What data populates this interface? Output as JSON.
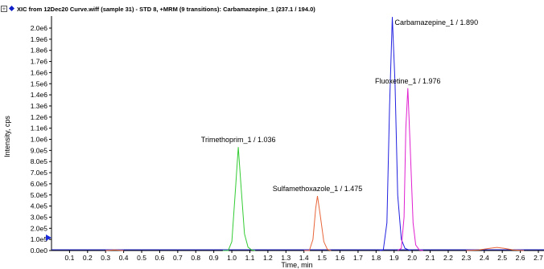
{
  "header": {
    "expand_glyph": "+",
    "title": "XIC from 12Dec20 Curve.wiff (sample 31) - STD 8, +MRM (9 transitions): Carbamazepine_1 (237.1 / 194.0)"
  },
  "colors": {
    "expand_box": "#555555",
    "title_marker": "#1020c8",
    "axis": "#000000",
    "baseline_trace": "#2a2ad0",
    "y_axis_arrow": "#1a2ad8"
  },
  "chart_data": {
    "type": "line",
    "title": "XIC from 12Dec20 Curve.wiff (sample 31) - STD 8, +MRM (9 transitions): Carbamazepine_1 (237.1 / 194.0)",
    "xlabel": "Time, min",
    "ylabel": "Intensity, cps",
    "xlim": [
      0.0,
      2.7
    ],
    "ylim": [
      0.0,
      2100000.0
    ],
    "grid": false,
    "x_ticks": [
      "0.1",
      "0.2",
      "0.3",
      "0.4",
      "0.5",
      "0.6",
      "0.7",
      "0.8",
      "0.9",
      "1.0",
      "1.1",
      "1.2",
      "1.3",
      "1.4",
      "1.5",
      "1.6",
      "1.7",
      "1.8",
      "1.9",
      "2.0",
      "2.1",
      "2.2",
      "2.3",
      "2.4",
      "2.5",
      "2.6",
      "2.7"
    ],
    "y_ticks": [
      "0.0e0",
      "1.0e5",
      "2.0e5",
      "3.0e5",
      "4.0e5",
      "5.0e5",
      "6.0e5",
      "7.0e5",
      "8.0e5",
      "9.0e5",
      "1.0e6",
      "1.1e6",
      "1.2e6",
      "1.3e6",
      "1.4e6",
      "1.5e6",
      "1.6e6",
      "1.7e6",
      "1.8e6",
      "1.9e6",
      "2.0e6"
    ],
    "series": [
      {
        "label": "Trimethoprim_1 / 1.036",
        "color": "#33cc33",
        "x": [
          0.95,
          0.98,
          1.0,
          1.02,
          1.036,
          1.05,
          1.07,
          1.09,
          1.11,
          1.13
        ],
        "y": [
          0,
          0,
          80000,
          550000,
          930000,
          600000,
          150000,
          30000,
          5000,
          0
        ]
      },
      {
        "label": "Sulfamethoxazole_1 / 1.475",
        "color": "#e8663a",
        "x": [
          1.4,
          1.43,
          1.45,
          1.465,
          1.475,
          1.49,
          1.51,
          1.53,
          1.55
        ],
        "y": [
          0,
          0,
          100000,
          380000,
          490000,
          320000,
          80000,
          10000,
          0
        ]
      },
      {
        "label": "Carbamazepine_1 / 1.890",
        "color": "#2020e0",
        "x": [
          1.82,
          1.84,
          1.86,
          1.875,
          1.89,
          1.905,
          1.92,
          1.94,
          1.96,
          1.99
        ],
        "y": [
          0,
          5000,
          250000,
          1300000,
          2100000,
          1500000,
          500000,
          100000,
          20000,
          0
        ]
      },
      {
        "label": "Fluoxetine_1 / 1.976",
        "color": "#e020d0",
        "x": [
          1.92,
          1.94,
          1.955,
          1.965,
          1.976,
          1.99,
          2.005,
          2.02,
          2.04,
          2.06
        ],
        "y": [
          0,
          20000,
          300000,
          1100000,
          1460000,
          900000,
          250000,
          50000,
          5000,
          0
        ]
      },
      {
        "label": "",
        "color": "#e8663a",
        "x": [
          2.3,
          2.37,
          2.43,
          2.47,
          2.51,
          2.56,
          2.62
        ],
        "y": [
          0,
          6000,
          20000,
          28000,
          20000,
          6000,
          0
        ]
      },
      {
        "label": "",
        "color": "#e8663a",
        "x": [
          0.3,
          0.35,
          0.4
        ],
        "y": [
          0,
          5000,
          0
        ]
      }
    ]
  }
}
